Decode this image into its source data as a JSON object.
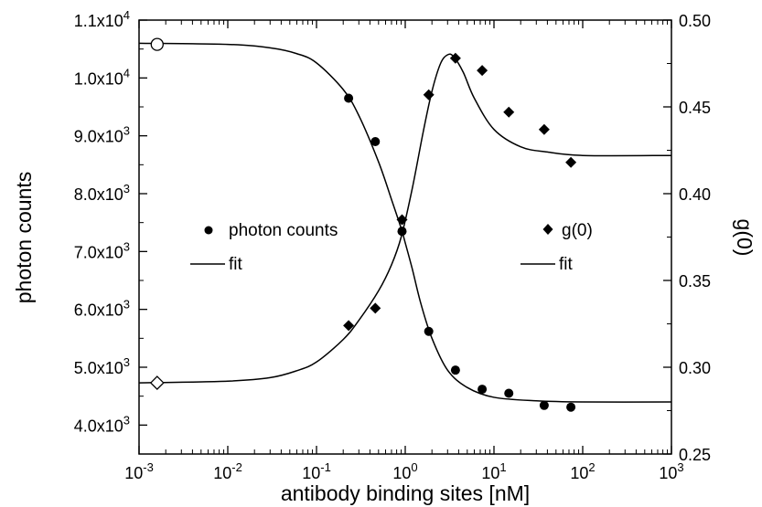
{
  "chart_data": {
    "type": "scatter",
    "xscale": "log",
    "xlabel": "antibody binding sites [nM]",
    "ylabel_left": "photon counts",
    "ylabel_right": "g(0)",
    "xlim": [
      0.001,
      1000
    ],
    "ylim_left": [
      3500,
      11000
    ],
    "ylim_right": [
      0.25,
      0.5
    ],
    "x_ticks": [
      {
        "base": "10",
        "exp": "-3",
        "value": 0.001
      },
      {
        "base": "10",
        "exp": "-2",
        "value": 0.01
      },
      {
        "base": "10",
        "exp": "-1",
        "value": 0.1
      },
      {
        "base": "10",
        "exp": "0",
        "value": 1
      },
      {
        "base": "10",
        "exp": "1",
        "value": 10
      },
      {
        "base": "10",
        "exp": "2",
        "value": 100
      },
      {
        "base": "10",
        "exp": "3",
        "value": 1000
      }
    ],
    "left_ticks": [
      {
        "mant": "4.0x10",
        "exp": "3",
        "value": 4000
      },
      {
        "mant": "5.0x10",
        "exp": "3",
        "value": 5000
      },
      {
        "mant": "6.0x10",
        "exp": "3",
        "value": 6000
      },
      {
        "mant": "7.0x10",
        "exp": "3",
        "value": 7000
      },
      {
        "mant": "8.0x10",
        "exp": "3",
        "value": 8000
      },
      {
        "mant": "9.0x10",
        "exp": "3",
        "value": 9000
      },
      {
        "mant": "1.0x10",
        "exp": "4",
        "value": 10000
      },
      {
        "mant": "1.1x10",
        "exp": "4",
        "value": 11000
      }
    ],
    "right_ticks": [
      "0.25",
      "0.30",
      "0.35",
      "0.40",
      "0.45",
      "0.50"
    ],
    "series": [
      {
        "name": "photon counts",
        "axis": "left",
        "marker": "circle",
        "open_point": {
          "x": 0.0016,
          "y": 10580
        },
        "x": [
          0.23,
          0.46,
          0.92,
          1.84,
          3.68,
          7.36,
          14.7,
          36.8,
          73.6
        ],
        "y": [
          9650,
          8900,
          7350,
          5620,
          4950,
          4620,
          4550,
          4340,
          4310
        ]
      },
      {
        "name": "g(0)",
        "axis": "right",
        "marker": "diamond",
        "open_point": {
          "x": 0.0016,
          "y": 0.291
        },
        "x": [
          0.23,
          0.46,
          0.92,
          1.84,
          3.68,
          7.36,
          14.7,
          36.8,
          73.6
        ],
        "y": [
          0.324,
          0.334,
          0.385,
          0.457,
          0.478,
          0.471,
          0.447,
          0.437,
          0.418
        ]
      }
    ],
    "fits": [
      {
        "name": "fit",
        "axis": "left",
        "x": [
          0.001,
          0.01,
          0.03,
          0.06,
          0.1,
          0.2,
          0.3,
          0.5,
          0.7,
          0.9,
          1.0,
          1.2,
          1.5,
          2.0,
          3.0,
          5.0,
          10,
          30,
          100,
          1000
        ],
        "y": [
          10600,
          10580,
          10520,
          10420,
          10260,
          9800,
          9350,
          8550,
          7900,
          7400,
          7150,
          6700,
          6100,
          5500,
          4950,
          4650,
          4480,
          4420,
          4400,
          4400
        ]
      },
      {
        "name": "fit",
        "axis": "right",
        "x": [
          0.001,
          0.01,
          0.03,
          0.06,
          0.1,
          0.2,
          0.3,
          0.5,
          0.7,
          0.9,
          1.2,
          1.6,
          2.0,
          2.5,
          3.0,
          3.5,
          4.5,
          6.0,
          10,
          20,
          40,
          100,
          1000
        ],
        "y": [
          0.291,
          0.292,
          0.294,
          0.298,
          0.303,
          0.316,
          0.327,
          0.344,
          0.359,
          0.375,
          0.403,
          0.436,
          0.459,
          0.475,
          0.48,
          0.479,
          0.47,
          0.455,
          0.437,
          0.427,
          0.424,
          0.422,
          0.422
        ]
      }
    ],
    "legends": [
      {
        "placement": "center-left",
        "entries": [
          {
            "label": "photon counts",
            "symbol": "circle"
          },
          {
            "label": "fit",
            "symbol": "line"
          }
        ]
      },
      {
        "placement": "center-right",
        "entries": [
          {
            "label": "g(0)",
            "symbol": "diamond"
          },
          {
            "label": "fit",
            "symbol": "line"
          }
        ]
      }
    ],
    "grid": false
  }
}
